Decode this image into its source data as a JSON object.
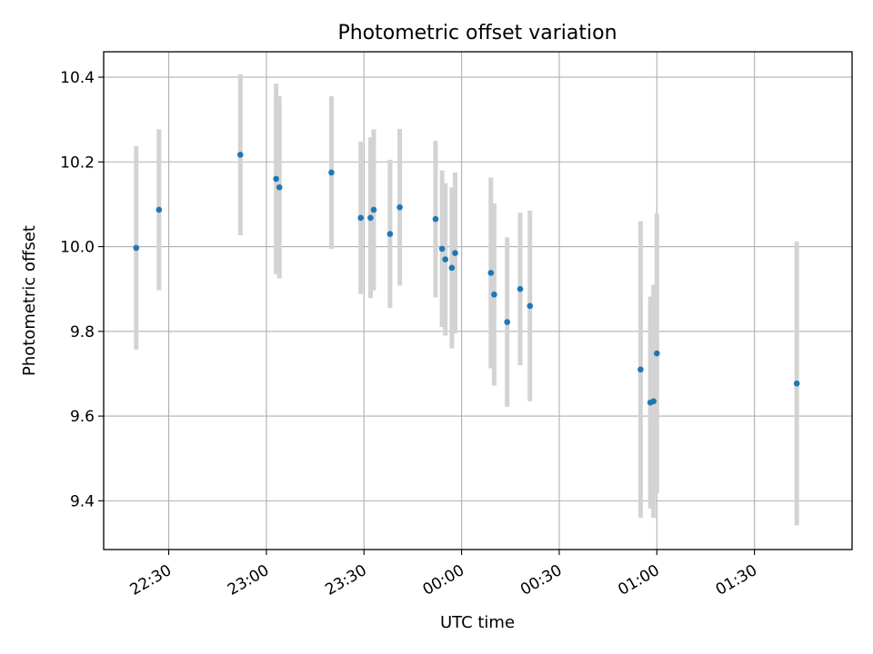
{
  "chart_data": {
    "type": "scatter",
    "title": "Photometric offset variation",
    "xlabel": "UTC time",
    "ylabel": "Photometric offset",
    "x_unit": "UTC clock time (HH:MM, 22:20 to 01:55)",
    "xlim": [
      "22:10",
      "02:00"
    ],
    "ylim": [
      9.285,
      10.46
    ],
    "x_ticks": [
      "22:30",
      "23:00",
      "23:30",
      "00:00",
      "00:30",
      "01:00",
      "01:30"
    ],
    "y_ticks": [
      9.4,
      9.6,
      9.8,
      10.0,
      10.2,
      10.4
    ],
    "y_tick_labels": [
      "9.4",
      "9.6",
      "9.8",
      "10.0",
      "10.2",
      "10.4"
    ],
    "grid": true,
    "legend": "none",
    "series": [
      {
        "marker_color": "#1f77b4",
        "error_color": "#d3d3d3",
        "points": [
          {
            "x": "22:20",
            "y": 9.997,
            "err": 0.24
          },
          {
            "x": "22:27",
            "y": 10.087,
            "err": 0.19
          },
          {
            "x": "22:52",
            "y": 10.217,
            "err": 0.19
          },
          {
            "x": "23:03",
            "y": 10.16,
            "err": 0.225
          },
          {
            "x": "23:04",
            "y": 10.14,
            "err": 0.215
          },
          {
            "x": "23:20",
            "y": 10.175,
            "err": 0.18
          },
          {
            "x": "23:29",
            "y": 10.068,
            "err": 0.18
          },
          {
            "x": "23:32",
            "y": 10.068,
            "err": 0.19
          },
          {
            "x": "23:33",
            "y": 10.087,
            "err": 0.19
          },
          {
            "x": "23:38",
            "y": 10.03,
            "err": 0.175
          },
          {
            "x": "23:41",
            "y": 10.093,
            "err": 0.185
          },
          {
            "x": "23:52",
            "y": 10.065,
            "err": 0.185
          },
          {
            "x": "23:54",
            "y": 9.995,
            "err": 0.185
          },
          {
            "x": "23:55",
            "y": 9.97,
            "err": 0.18
          },
          {
            "x": "23:57",
            "y": 9.95,
            "err": 0.19
          },
          {
            "x": "23:58",
            "y": 9.985,
            "err": 0.19
          },
          {
            "x": "00:09",
            "y": 9.938,
            "err": 0.225
          },
          {
            "x": "00:10",
            "y": 9.887,
            "err": 0.215
          },
          {
            "x": "00:14",
            "y": 9.822,
            "err": 0.2
          },
          {
            "x": "00:18",
            "y": 9.9,
            "err": 0.18
          },
          {
            "x": "00:21",
            "y": 9.86,
            "err": 0.225
          },
          {
            "x": "00:55",
            "y": 9.71,
            "err": 0.35
          },
          {
            "x": "00:58",
            "y": 9.632,
            "err": 0.25
          },
          {
            "x": "00:59",
            "y": 9.635,
            "err": 0.275
          },
          {
            "x": "01:00",
            "y": 9.748,
            "err": 0.33
          },
          {
            "x": "01:43",
            "y": 9.677,
            "err": 0.335
          }
        ]
      }
    ]
  }
}
